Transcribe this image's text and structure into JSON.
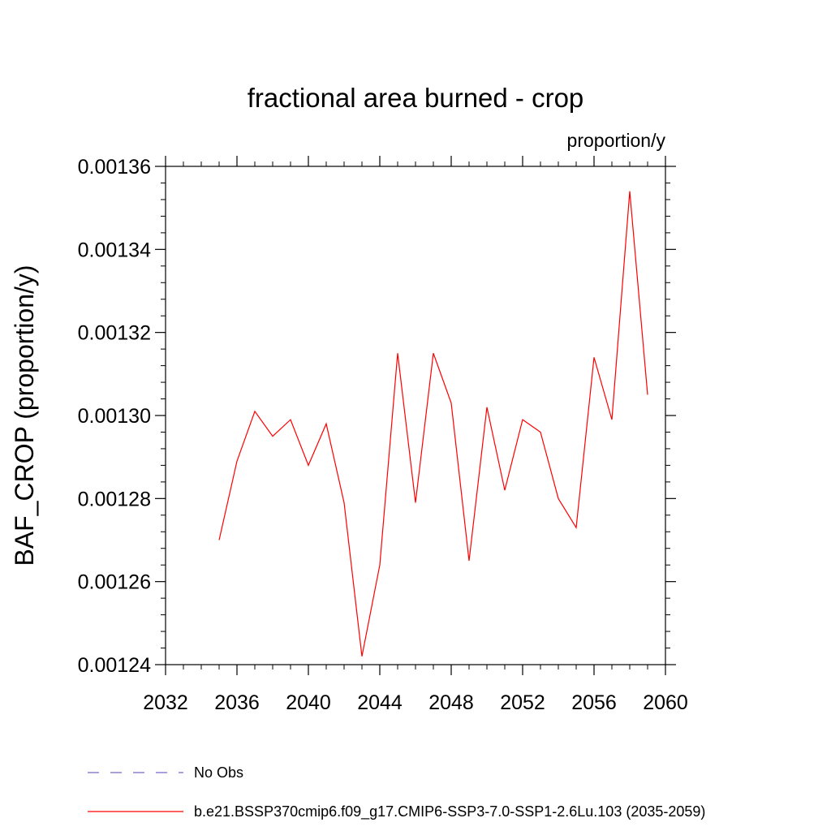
{
  "chart_data": {
    "type": "line",
    "title": "fractional area burned - crop",
    "units_label": "proportion/y",
    "xlabel": "",
    "ylabel": "BAF_CROP  (proportion/y)",
    "xlim": [
      2032,
      2060
    ],
    "ylim": [
      0.00124,
      0.00136
    ],
    "x_ticks": [
      2032,
      2036,
      2040,
      2044,
      2048,
      2052,
      2056,
      2060
    ],
    "x_tick_labels": [
      "2032",
      "2036",
      "2040",
      "2044",
      "2048",
      "2052",
      "2056",
      "2060"
    ],
    "y_ticks": [
      0.00124,
      0.00126,
      0.00128,
      0.0013,
      0.00132,
      0.00134,
      0.00136
    ],
    "y_tick_labels": [
      "0.00124",
      "0.00126",
      "0.00128",
      "0.00130",
      "0.00132",
      "0.00134",
      "0.00136"
    ],
    "grid": false,
    "legend_position": "bottom",
    "series": [
      {
        "name": "No Obs",
        "color": "#7b68c8",
        "dashed": true,
        "x": [],
        "y": []
      },
      {
        "name": "b.e21.BSSP370cmip6.f09_g17.CMIP6-SSP3-7.0-SSP1-2.6Lu.103 (2035-2059)",
        "color": "#ff0000",
        "dashed": false,
        "x": [
          2035,
          2036,
          2037,
          2038,
          2039,
          2040,
          2041,
          2042,
          2043,
          2044,
          2045,
          2046,
          2047,
          2048,
          2049,
          2050,
          2051,
          2052,
          2053,
          2054,
          2055,
          2056,
          2057,
          2058,
          2059
        ],
        "y": [
          0.00127,
          0.001289,
          0.001301,
          0.001295,
          0.001299,
          0.001288,
          0.001298,
          0.001279,
          0.001242,
          0.001264,
          0.001315,
          0.001279,
          0.001315,
          0.001303,
          0.001265,
          0.001302,
          0.001282,
          0.001299,
          0.001296,
          0.00128,
          0.001273,
          0.001314,
          0.001299,
          0.001354,
          0.001305
        ]
      }
    ]
  }
}
